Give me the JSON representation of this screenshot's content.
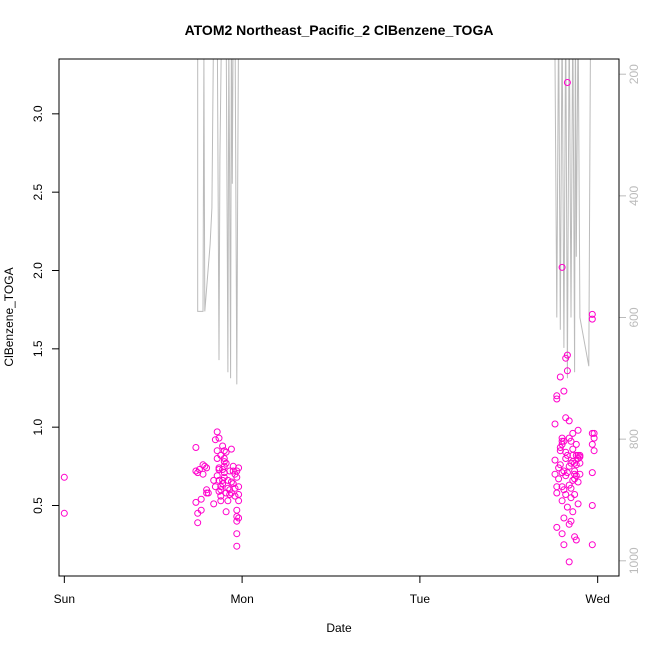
{
  "chart_data": {
    "type": "scatter",
    "title": "ATOM2 Northeast_Pacific_2 ClBenzene_TOGA",
    "xlabel": "Date",
    "ylabel": "ClBenzene_TOGA",
    "x_tick_labels": [
      "Sun",
      "Mon",
      "Tue",
      "Wed"
    ],
    "y_ticks": [
      0.5,
      1.0,
      1.5,
      2.0,
      2.5,
      3.0
    ],
    "y_tick_labels": [
      "0.5",
      "1.0",
      "1.5",
      "2.0",
      "2.5",
      "3.0"
    ],
    "ylim": [
      0.05,
      3.35
    ],
    "xlim_days": [
      -0.03,
      3.12
    ],
    "right_axis": {
      "ticks": [
        200,
        400,
        600,
        800,
        1000
      ],
      "tick_labels": [
        "200",
        "400",
        "600",
        "800",
        "1000"
      ],
      "range": [
        175,
        1025
      ],
      "reversed": true,
      "color": "#bbbbbb"
    },
    "colors": {
      "points": "#ff00cc",
      "line": "#bbbbbb",
      "axis": "#000000"
    },
    "series": [
      {
        "type": "scatter",
        "points": [
          [
            0.0,
            0.68
          ],
          [
            0.0,
            0.45
          ],
          [
            0.74,
            0.87
          ],
          [
            0.74,
            0.72
          ],
          [
            0.74,
            0.52
          ],
          [
            0.75,
            0.45
          ],
          [
            0.75,
            0.39
          ],
          [
            0.75,
            0.71
          ],
          [
            0.76,
            0.73
          ],
          [
            0.77,
            0.47
          ],
          [
            0.77,
            0.54
          ],
          [
            0.78,
            0.7
          ],
          [
            0.78,
            0.76
          ],
          [
            0.79,
            0.75
          ],
          [
            0.8,
            0.6
          ],
          [
            0.8,
            0.58
          ],
          [
            0.8,
            0.74
          ],
          [
            0.81,
            0.58
          ],
          [
            0.84,
            0.66
          ],
          [
            0.84,
            0.51
          ],
          [
            0.85,
            0.62
          ],
          [
            0.85,
            0.92
          ],
          [
            0.86,
            0.85
          ],
          [
            0.86,
            0.8
          ],
          [
            0.86,
            0.97
          ],
          [
            0.86,
            0.69
          ],
          [
            0.87,
            0.59
          ],
          [
            0.87,
            0.66
          ],
          [
            0.87,
            0.73
          ],
          [
            0.87,
            0.74
          ],
          [
            0.87,
            0.93
          ],
          [
            0.88,
            0.82
          ],
          [
            0.88,
            0.56
          ],
          [
            0.88,
            0.6
          ],
          [
            0.88,
            0.53
          ],
          [
            0.88,
            0.62
          ],
          [
            0.89,
            0.73
          ],
          [
            0.89,
            0.64
          ],
          [
            0.89,
            0.66
          ],
          [
            0.89,
            0.88
          ],
          [
            0.9,
            0.75
          ],
          [
            0.9,
            0.71
          ],
          [
            0.9,
            0.68
          ],
          [
            0.9,
            0.85
          ],
          [
            0.9,
            0.8
          ],
          [
            0.9,
            0.78
          ],
          [
            0.91,
            0.77
          ],
          [
            0.91,
            0.58
          ],
          [
            0.91,
            0.46
          ],
          [
            0.91,
            0.84
          ],
          [
            0.92,
            0.61
          ],
          [
            0.92,
            0.66
          ],
          [
            0.92,
            0.53
          ],
          [
            0.93,
            0.72
          ],
          [
            0.93,
            0.6
          ],
          [
            0.93,
            0.57
          ],
          [
            0.94,
            0.58
          ],
          [
            0.94,
            0.65
          ],
          [
            0.94,
            0.86
          ],
          [
            0.95,
            0.64
          ],
          [
            0.95,
            0.75
          ],
          [
            0.95,
            0.72
          ],
          [
            0.96,
            0.7
          ],
          [
            0.96,
            0.61
          ],
          [
            0.96,
            0.56
          ],
          [
            0.97,
            0.68
          ],
          [
            0.97,
            0.72
          ],
          [
            0.97,
            0.47
          ],
          [
            0.97,
            0.43
          ],
          [
            0.97,
            0.4
          ],
          [
            0.97,
            0.32
          ],
          [
            0.97,
            0.24
          ],
          [
            0.98,
            0.74
          ],
          [
            0.98,
            0.62
          ],
          [
            0.98,
            0.57
          ],
          [
            0.98,
            0.53
          ],
          [
            0.98,
            0.42
          ],
          [
            2.76,
            1.02
          ],
          [
            2.76,
            0.7
          ],
          [
            2.76,
            0.79
          ],
          [
            2.77,
            1.18
          ],
          [
            2.77,
            1.2
          ],
          [
            2.77,
            0.62
          ],
          [
            2.77,
            0.58
          ],
          [
            2.77,
            0.36
          ],
          [
            2.78,
            0.74
          ],
          [
            2.78,
            0.67
          ],
          [
            2.79,
            1.32
          ],
          [
            2.79,
            0.87
          ],
          [
            2.79,
            0.85
          ],
          [
            2.79,
            0.76
          ],
          [
            2.8,
            2.02
          ],
          [
            2.8,
            0.91
          ],
          [
            2.8,
            0.93
          ],
          [
            2.8,
            0.89
          ],
          [
            2.8,
            0.71
          ],
          [
            2.8,
            0.62
          ],
          [
            2.8,
            0.53
          ],
          [
            2.8,
            0.32
          ],
          [
            2.81,
            1.23
          ],
          [
            2.81,
            0.91
          ],
          [
            2.81,
            0.72
          ],
          [
            2.81,
            0.6
          ],
          [
            2.81,
            0.42
          ],
          [
            2.81,
            0.25
          ],
          [
            2.82,
            1.06
          ],
          [
            2.82,
            1.44
          ],
          [
            2.82,
            0.84
          ],
          [
            2.82,
            0.8
          ],
          [
            2.82,
            0.69
          ],
          [
            2.82,
            0.57
          ],
          [
            2.83,
            3.2
          ],
          [
            2.83,
            1.36
          ],
          [
            2.83,
            1.46
          ],
          [
            2.83,
            0.82
          ],
          [
            2.83,
            0.71
          ],
          [
            2.83,
            0.49
          ],
          [
            2.84,
            0.38
          ],
          [
            2.84,
            0.14
          ],
          [
            2.84,
            1.04
          ],
          [
            2.84,
            0.93
          ],
          [
            2.84,
            0.75
          ],
          [
            2.84,
            0.63
          ],
          [
            2.85,
            0.91
          ],
          [
            2.85,
            0.77
          ],
          [
            2.85,
            0.55
          ],
          [
            2.85,
            0.4
          ],
          [
            2.85,
            0.61
          ],
          [
            2.86,
            0.96
          ],
          [
            2.86,
            0.86
          ],
          [
            2.86,
            0.82
          ],
          [
            2.86,
            0.78
          ],
          [
            2.86,
            0.66
          ],
          [
            2.86,
            0.46
          ],
          [
            2.87,
            0.77
          ],
          [
            2.87,
            0.67
          ],
          [
            2.87,
            0.72
          ],
          [
            2.87,
            0.7
          ],
          [
            2.87,
            0.57
          ],
          [
            2.87,
            0.3
          ],
          [
            2.88,
            0.89
          ],
          [
            2.88,
            0.69
          ],
          [
            2.88,
            0.82
          ],
          [
            2.88,
            0.76
          ],
          [
            2.88,
            0.28
          ],
          [
            2.89,
            0.98
          ],
          [
            2.89,
            0.82
          ],
          [
            2.89,
            0.8
          ],
          [
            2.89,
            0.65
          ],
          [
            2.89,
            0.51
          ],
          [
            2.9,
            0.82
          ],
          [
            2.9,
            0.81
          ],
          [
            2.9,
            0.77
          ],
          [
            2.9,
            0.7
          ],
          [
            2.97,
            1.72
          ],
          [
            2.97,
            1.69
          ],
          [
            2.97,
            0.96
          ],
          [
            2.97,
            0.89
          ],
          [
            2.97,
            0.71
          ],
          [
            2.97,
            0.5
          ],
          [
            2.97,
            0.25
          ],
          [
            2.98,
            0.96
          ],
          [
            2.98,
            0.93
          ],
          [
            2.98,
            0.85
          ]
        ]
      },
      {
        "type": "line",
        "axis": "right",
        "points": [
          [
            0.75,
            175
          ],
          [
            0.75,
            590
          ],
          [
            0.76,
            590
          ],
          [
            0.78,
            590
          ],
          [
            0.785,
            170
          ],
          [
            0.79,
            590
          ],
          [
            0.82,
            480
          ],
          [
            0.83,
            420
          ],
          [
            0.84,
            100
          ],
          [
            0.86,
            100
          ],
          [
            0.87,
            670
          ],
          [
            0.875,
            340
          ],
          [
            0.885,
            100
          ],
          [
            0.91,
            100
          ],
          [
            0.92,
            690
          ],
          [
            0.925,
            150
          ],
          [
            0.93,
            390
          ],
          [
            0.935,
            700
          ],
          [
            0.94,
            100
          ],
          [
            0.945,
            380
          ],
          [
            0.95,
            100
          ],
          [
            0.96,
            100
          ],
          [
            0.97,
            710
          ],
          [
            0.975,
            380
          ],
          [
            0.98,
            100
          ],
          [
            2.73,
            175
          ],
          [
            2.74,
            175
          ],
          [
            2.76,
            175
          ],
          [
            2.77,
            600
          ],
          [
            2.78,
            100
          ],
          [
            2.79,
            620
          ],
          [
            2.8,
            100
          ],
          [
            2.81,
            650
          ],
          [
            2.82,
            100
          ],
          [
            2.83,
            700
          ],
          [
            2.84,
            100
          ],
          [
            2.85,
            600
          ],
          [
            2.86,
            100
          ],
          [
            2.87,
            690
          ],
          [
            2.875,
            100
          ],
          [
            2.88,
            500
          ],
          [
            2.89,
            100
          ],
          [
            2.9,
            600
          ],
          [
            2.95,
            680
          ],
          [
            2.96,
            100
          ],
          [
            2.97,
            100
          ]
        ]
      }
    ]
  }
}
